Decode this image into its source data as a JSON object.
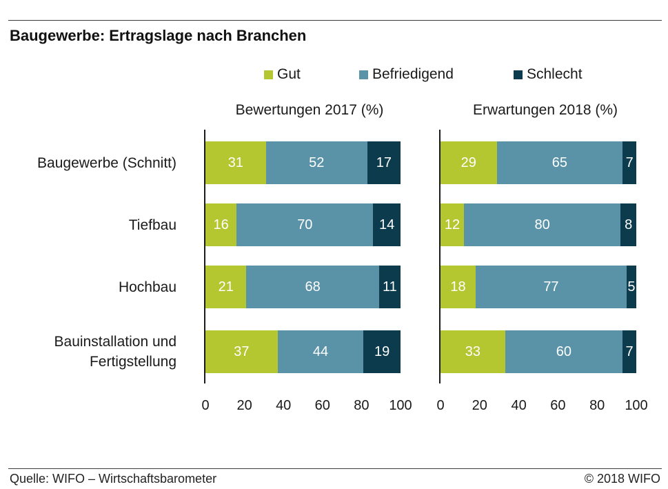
{
  "title": "Baugewerbe: Ertragslage nach Branchen",
  "chart_data": [
    {
      "type": "bar",
      "orientation": "horizontal",
      "stacked": true,
      "title": "Bewertungen 2017 (%)",
      "categories": [
        "Baugewerbe (Schnitt)",
        "Tiefbau",
        "Hochbau",
        "Bauinstallation und Fertigstellung"
      ],
      "series": [
        {
          "name": "Gut",
          "color": "#b4c730",
          "values": [
            31,
            16,
            21,
            37
          ]
        },
        {
          "name": "Befriedigend",
          "color": "#5a93a8",
          "values": [
            52,
            70,
            68,
            44
          ]
        },
        {
          "name": "Schlecht",
          "color": "#0b3b4c",
          "values": [
            17,
            14,
            11,
            19
          ]
        }
      ],
      "xlim": [
        0,
        100
      ],
      "xticks": [
        0,
        20,
        40,
        60,
        80,
        100
      ],
      "data_labels": true,
      "grid": false,
      "legend_position": "top"
    },
    {
      "type": "bar",
      "orientation": "horizontal",
      "stacked": true,
      "title": "Erwartungen 2018 (%)",
      "categories": [
        "Baugewerbe (Schnitt)",
        "Tiefbau",
        "Hochbau",
        "Bauinstallation und Fertigstellung"
      ],
      "series": [
        {
          "name": "Gut",
          "color": "#b4c730",
          "values": [
            29,
            12,
            18,
            33
          ]
        },
        {
          "name": "Befriedigend",
          "color": "#5a93a8",
          "values": [
            65,
            80,
            77,
            60
          ]
        },
        {
          "name": "Schlecht",
          "color": "#0b3b4c",
          "values": [
            7,
            8,
            5,
            7
          ]
        }
      ],
      "xlim": [
        0,
        100
      ],
      "xticks": [
        0,
        20,
        40,
        60,
        80,
        100
      ],
      "data_labels": true,
      "grid": false,
      "legend_position": "top"
    }
  ],
  "footer": {
    "source": "Quelle: WIFO – Wirtschaftsbarometer",
    "copyright": "© 2018 WIFO"
  }
}
